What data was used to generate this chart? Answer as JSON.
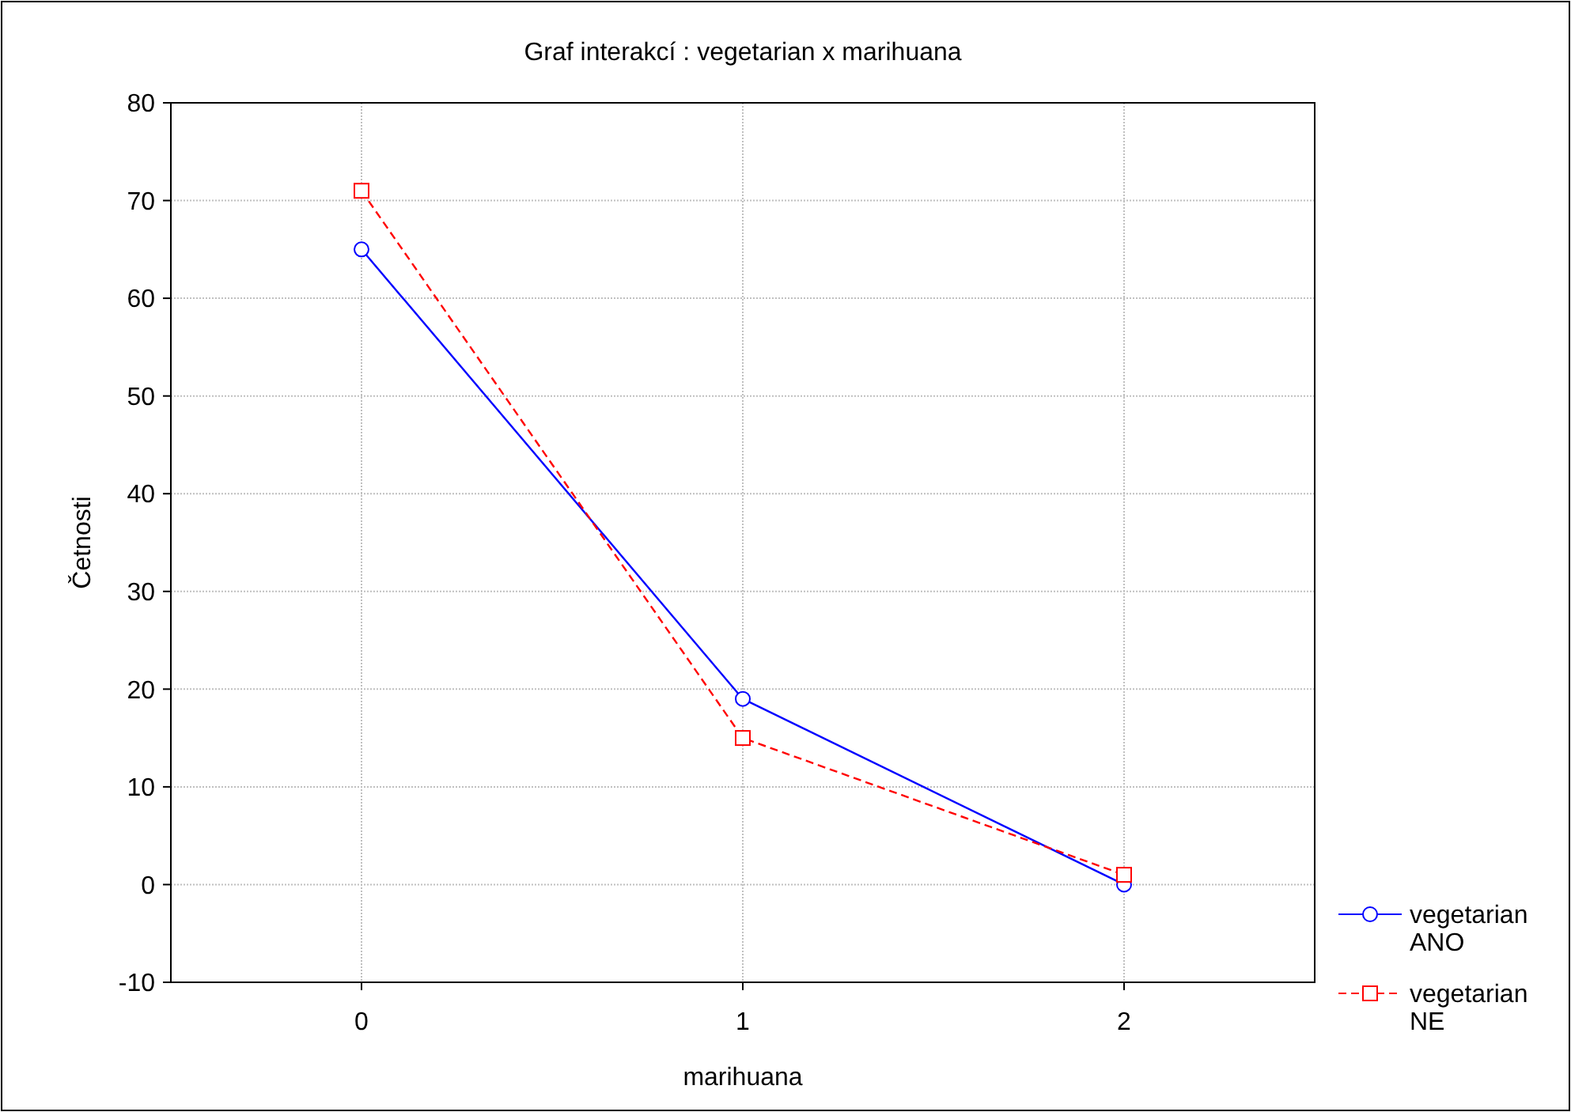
{
  "chart_data": {
    "type": "line",
    "title": "Graf interakcí : vegetarian x marihuana",
    "xlabel": "marihuana",
    "ylabel": "Četnosti",
    "x": [
      0,
      1,
      2
    ],
    "xlim": [
      -0.5,
      2.5
    ],
    "xticks": [
      0,
      1,
      2
    ],
    "ylim": [
      -10,
      80
    ],
    "yticks": [
      -10,
      0,
      10,
      20,
      30,
      40,
      50,
      60,
      70,
      80
    ],
    "grid": true,
    "legend": "bottom right",
    "series": [
      {
        "name": "vegetarian ANO",
        "color": "#0000ff",
        "values": [
          65,
          19,
          0
        ],
        "marker": "circle",
        "line_style": "solid"
      },
      {
        "name": "vegetarian NE",
        "color": "#ff0000",
        "values": [
          71,
          15,
          1
        ],
        "marker": "square",
        "line_style": "dashed"
      }
    ]
  }
}
